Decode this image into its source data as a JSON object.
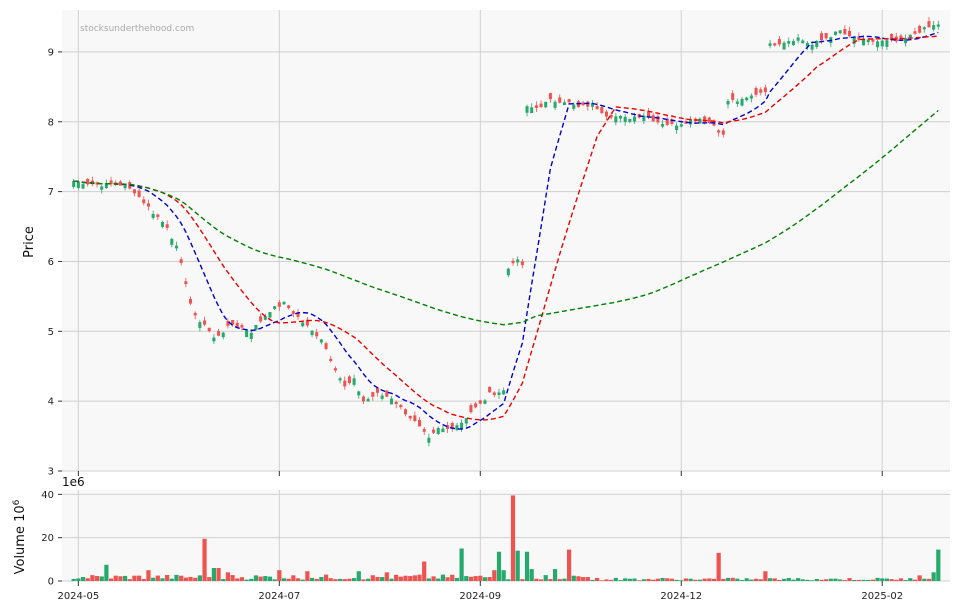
{
  "chart_data": {
    "type": "candlestick",
    "watermark": "stocksunderthehood.com",
    "price_panel": {
      "ylabel": "Price",
      "ylim": [
        3,
        9.6
      ],
      "yticks": [
        "3",
        "4",
        "5",
        "6",
        "7",
        "8",
        "9"
      ],
      "grid": true
    },
    "volume_panel": {
      "ylabel": "Volume",
      "ylabel_exp": "6",
      "scale_label": "1e6",
      "ylim": [
        0,
        42
      ],
      "yticks": [
        "0",
        "20",
        "40"
      ],
      "grid": true
    },
    "x_ticks": [
      "2024-05",
      "2024-07",
      "2024-09",
      "2024-12",
      "2025-02"
    ],
    "x_tick_index": [
      1,
      44,
      87,
      130,
      173
    ],
    "n_bars": 186,
    "colors": {
      "up": "#26a96c",
      "down": "#ef5350",
      "ma_fast": "#0000cc",
      "ma_mid": "#ee0000",
      "ma_slow": "#008000",
      "panel_bg": "#f8f8f8",
      "grid": "#d0d0d0"
    },
    "close_anchors": [
      [
        0,
        7.15
      ],
      [
        5,
        7.1
      ],
      [
        10,
        7.1
      ],
      [
        13,
        7.0
      ],
      [
        17,
        6.7
      ],
      [
        20,
        6.5
      ],
      [
        22,
        6.2
      ],
      [
        24,
        5.7
      ],
      [
        25,
        5.4
      ],
      [
        26,
        5.2
      ],
      [
        28,
        5.1
      ],
      [
        30,
        4.9
      ],
      [
        32,
        5.0
      ],
      [
        34,
        5.1
      ],
      [
        38,
        5.0
      ],
      [
        42,
        5.3
      ],
      [
        45,
        5.4
      ],
      [
        48,
        5.2
      ],
      [
        51,
        5.0
      ],
      [
        53,
        4.9
      ],
      [
        55,
        4.6
      ],
      [
        58,
        4.2
      ],
      [
        60,
        4.3
      ],
      [
        62,
        4.0
      ],
      [
        65,
        4.1
      ],
      [
        68,
        4.05
      ],
      [
        70,
        3.9
      ],
      [
        73,
        3.7
      ],
      [
        76,
        3.45
      ],
      [
        78,
        3.6
      ],
      [
        80,
        3.6
      ],
      [
        83,
        3.7
      ],
      [
        85,
        3.85
      ],
      [
        87,
        3.95
      ],
      [
        89,
        4.1
      ],
      [
        92,
        4.15
      ],
      [
        93,
        5.9
      ],
      [
        94,
        6.0
      ],
      [
        95,
        6.0
      ],
      [
        96,
        5.95
      ],
      [
        97,
        8.2
      ],
      [
        99,
        8.2
      ],
      [
        102,
        8.3
      ],
      [
        105,
        8.3
      ],
      [
        108,
        8.2
      ],
      [
        111,
        8.25
      ],
      [
        114,
        8.1
      ],
      [
        118,
        8.05
      ],
      [
        122,
        8.1
      ],
      [
        125,
        8.0
      ],
      [
        128,
        7.95
      ],
      [
        131,
        8.0
      ],
      [
        134,
        8.05
      ],
      [
        137,
        7.95
      ],
      [
        139,
        7.8
      ],
      [
        140,
        8.3
      ],
      [
        143,
        8.3
      ],
      [
        146,
        8.4
      ],
      [
        148,
        8.45
      ],
      [
        149,
        9.1
      ],
      [
        152,
        9.15
      ],
      [
        155,
        9.2
      ],
      [
        158,
        9.1
      ],
      [
        161,
        9.2
      ],
      [
        164,
        9.3
      ],
      [
        166,
        9.2
      ],
      [
        170,
        9.15
      ],
      [
        173,
        9.15
      ],
      [
        177,
        9.15
      ],
      [
        181,
        9.3
      ],
      [
        183,
        9.35
      ],
      [
        185,
        9.4
      ]
    ],
    "volume_spikes": [
      [
        7,
        7.5
      ],
      [
        16,
        5.0
      ],
      [
        28,
        19.5
      ],
      [
        30,
        6.0
      ],
      [
        31,
        6.0
      ],
      [
        33,
        4.0
      ],
      [
        44,
        5.0
      ],
      [
        50,
        4.5
      ],
      [
        61,
        4.5
      ],
      [
        67,
        4.0
      ],
      [
        75,
        9.0
      ],
      [
        83,
        15.0
      ],
      [
        90,
        5.0
      ],
      [
        91,
        13.5
      ],
      [
        92,
        5.0
      ],
      [
        94,
        39.5
      ],
      [
        95,
        14.0
      ],
      [
        97,
        13.5
      ],
      [
        98,
        5.5
      ],
      [
        103,
        5.5
      ],
      [
        106,
        14.5
      ],
      [
        138,
        13.0
      ],
      [
        148,
        4.5
      ],
      [
        184,
        4.0
      ],
      [
        185,
        14.5
      ]
    ],
    "moving_averages": [
      {
        "window": 10,
        "color": "#0000cc",
        "dash": "5,3"
      },
      {
        "window": 20,
        "color": "#ee0000",
        "dash": "5,3"
      },
      {
        "window": 100,
        "color": "#008000",
        "dash": "5,3"
      }
    ]
  }
}
